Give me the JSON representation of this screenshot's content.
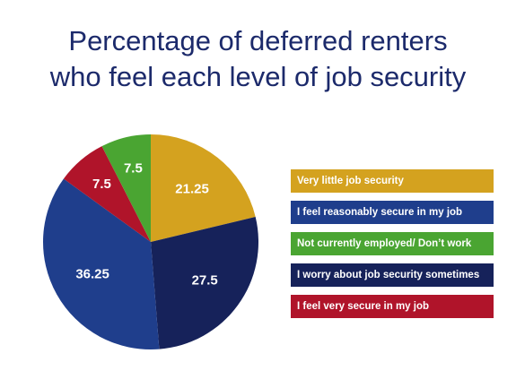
{
  "title_lines": [
    "Percentage of deferred renters",
    "who feel each level of job security"
  ],
  "chart_data": {
    "type": "pie",
    "title": "Percentage of deferred renters who feel each level of job security",
    "slices": [
      {
        "label": "Very little job security",
        "value": 21.25,
        "display": "21.25",
        "color": "#d4a21f"
      },
      {
        "label": "I worry about job security sometimes",
        "value": 27.5,
        "display": "27.5",
        "color": "#16225a"
      },
      {
        "label": "I feel reasonably secure in my job",
        "value": 36.25,
        "display": "36.25",
        "color": "#1f3e8c"
      },
      {
        "label": "I feel very secure in my job",
        "value": 7.5,
        "display": "7.5",
        "color": "#b0142a"
      },
      {
        "label": "Not currently employed/ Don’t work",
        "value": 7.5,
        "display": "7.5",
        "color": "#4aa532"
      }
    ],
    "legend": [
      {
        "label": "Very little job security",
        "color": "#d4a21f"
      },
      {
        "label": "I feel reasonably secure in my job",
        "color": "#1f3e8c"
      },
      {
        "label": "Not currently employed/ Don’t work",
        "color": "#4aa532"
      },
      {
        "label": "I worry about job security sometimes",
        "color": "#16225a"
      },
      {
        "label": "I feel very secure in my job",
        "color": "#b0142a"
      }
    ],
    "legend_position": "right"
  }
}
